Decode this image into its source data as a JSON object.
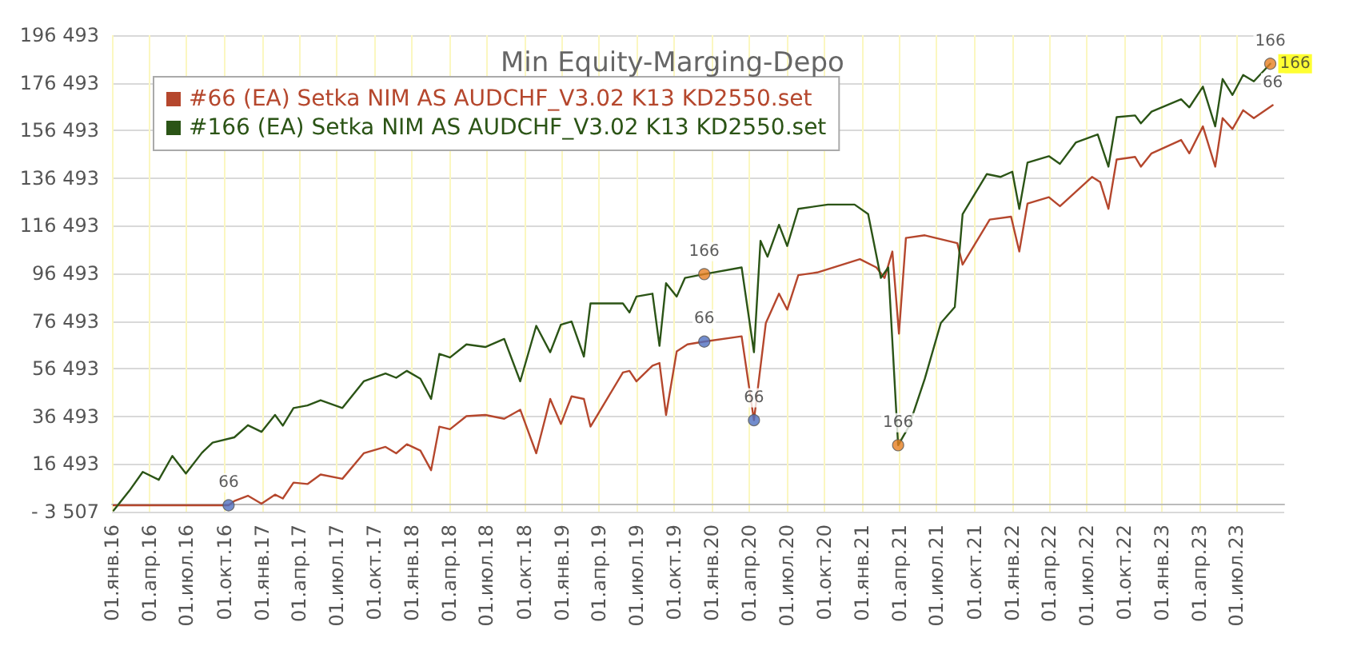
{
  "chart_data": {
    "type": "line",
    "title": "Min Equity-Marging-Depo",
    "legend": "top left",
    "grid": true,
    "line_style": "solid",
    "xlim": [
      "2016-01-01",
      "2023-10-25"
    ],
    "xticks": [
      {
        "value": "2016-01-01",
        "label": "01.янв.16"
      },
      {
        "value": "2016-04-01",
        "label": "01.апр.16"
      },
      {
        "value": "2016-07-01",
        "label": "01.июл.16"
      },
      {
        "value": "2016-10-01",
        "label": "01.окт.16"
      },
      {
        "value": "2017-01-01",
        "label": "01.янв.17"
      },
      {
        "value": "2017-04-01",
        "label": "01.апр.17"
      },
      {
        "value": "2017-07-01",
        "label": "01.июл.17"
      },
      {
        "value": "2017-10-01",
        "label": "01.окт.17"
      },
      {
        "value": "2018-01-01",
        "label": "01.янв.18"
      },
      {
        "value": "2018-04-01",
        "label": "01.апр.18"
      },
      {
        "value": "2018-07-01",
        "label": "01.июл.18"
      },
      {
        "value": "2018-10-01",
        "label": "01.окт.18"
      },
      {
        "value": "2019-01-01",
        "label": "01.янв.19"
      },
      {
        "value": "2019-04-01",
        "label": "01.апр.19"
      },
      {
        "value": "2019-07-01",
        "label": "01.июл.19"
      },
      {
        "value": "2019-10-01",
        "label": "01.окт.19"
      },
      {
        "value": "2020-01-01",
        "label": "01.янв.20"
      },
      {
        "value": "2020-04-01",
        "label": "01.апр.20"
      },
      {
        "value": "2020-07-01",
        "label": "01.июл.20"
      },
      {
        "value": "2020-10-01",
        "label": "01.окт.20"
      },
      {
        "value": "2021-01-01",
        "label": "01.янв.21"
      },
      {
        "value": "2021-04-01",
        "label": "01.апр.21"
      },
      {
        "value": "2021-07-01",
        "label": "01.июл.21"
      },
      {
        "value": "2021-10-01",
        "label": "01.окт.21"
      },
      {
        "value": "2022-01-01",
        "label": "01.янв.22"
      },
      {
        "value": "2022-04-01",
        "label": "01.апр.22"
      },
      {
        "value": "2022-07-01",
        "label": "01.июл.22"
      },
      {
        "value": "2022-10-01",
        "label": "01.окт.22"
      },
      {
        "value": "2023-01-01",
        "label": "01.янв.23"
      },
      {
        "value": "2023-04-01",
        "label": "01.апр.23"
      },
      {
        "value": "2023-07-01",
        "label": "01.июл.23"
      }
    ],
    "ylim": [
      -3507,
      196493
    ],
    "yticks": [
      {
        "value": -3507,
        "label": "- 3 507"
      },
      {
        "value": 16493,
        "label": "16 493"
      },
      {
        "value": 36493,
        "label": "36 493"
      },
      {
        "value": 56493,
        "label": "56 493"
      },
      {
        "value": 76493,
        "label": "76 493"
      },
      {
        "value": 96493,
        "label": "96 493"
      },
      {
        "value": 116493,
        "label": "116 493"
      },
      {
        "value": 136493,
        "label": "136 493"
      },
      {
        "value": 156493,
        "label": "156 493"
      },
      {
        "value": 176493,
        "label": "176 493"
      },
      {
        "value": 196493,
        "label": "196 493"
      }
    ],
    "series": [
      {
        "name": "#66 (EA) Setka NIM AS AUDCHF_V3.02 K13 KD2550.set",
        "color": "#b5472d",
        "x": [
          "2016-01-05",
          "2016-10-11",
          "2016-10-25",
          "2016-11-27",
          "2016-12-30",
          "2017-02-01",
          "2017-02-20",
          "2017-03-18",
          "2017-04-21",
          "2017-05-23",
          "2017-07-15",
          "2017-09-05",
          "2017-10-28",
          "2017-11-23",
          "2017-12-19",
          "2018-01-21",
          "2018-02-16",
          "2018-03-08",
          "2018-04-03",
          "2018-05-13",
          "2018-06-28",
          "2018-08-13",
          "2018-09-21",
          "2018-10-30",
          "2018-12-03",
          "2018-12-29",
          "2019-01-24",
          "2019-02-23",
          "2019-03-11",
          "2019-05-29",
          "2019-06-14",
          "2019-07-01",
          "2019-08-09",
          "2019-08-26",
          "2019-09-11",
          "2019-10-07",
          "2019-11-02",
          "2019-12-13",
          "2020-03-13",
          "2020-04-12",
          "2020-05-11",
          "2020-06-12",
          "2020-07-02",
          "2020-07-29",
          "2020-09-13",
          "2020-12-26",
          "2021-02-04",
          "2021-02-24",
          "2021-03-15",
          "2021-03-31",
          "2021-04-17",
          "2021-06-02",
          "2021-08-20",
          "2021-09-02",
          "2021-11-07",
          "2021-12-29",
          "2022-01-18",
          "2022-02-07",
          "2022-03-31",
          "2022-04-27",
          "2022-07-14",
          "2022-08-03",
          "2022-08-23",
          "2022-09-12",
          "2022-10-27",
          "2022-11-10",
          "2022-12-06",
          "2023-02-16",
          "2023-03-08",
          "2023-04-10",
          "2023-05-10",
          "2023-05-28",
          "2023-06-21",
          "2023-07-17",
          "2023-08-12",
          "2023-09-27"
        ],
        "values": [
          -830,
          -830,
          980,
          3180,
          -160,
          3640,
          2040,
          8700,
          8100,
          12100,
          10300,
          21000,
          23700,
          21000,
          24800,
          22100,
          13900,
          32200,
          31100,
          36600,
          37100,
          35500,
          39300,
          21000,
          43800,
          33300,
          44900,
          43800,
          32200,
          54900,
          55600,
          51200,
          57800,
          58900,
          37100,
          63800,
          66700,
          67900,
          70100,
          34900,
          75700,
          88000,
          81300,
          95800,
          96900,
          102500,
          99000,
          94600,
          105700,
          71200,
          111400,
          112500,
          109200,
          100200,
          119100,
          120300,
          105700,
          125800,
          128500,
          124700,
          137000,
          134800,
          123600,
          144300,
          145400,
          141300,
          146900,
          152500,
          146900,
          158200,
          141300,
          161700,
          157100,
          165000,
          161700,
          167100
        ]
      },
      {
        "name": "#166 (EA) Setka NIM AS AUDCHF_V3.02 K13 KD2550.set",
        "color": "#2b5416",
        "x": [
          "2016-01-05",
          "2016-02-12",
          "2016-03-16",
          "2016-04-24",
          "2016-05-27",
          "2016-06-29",
          "2016-08-07",
          "2016-09-02",
          "2016-10-25",
          "2016-11-27",
          "2016-12-30",
          "2017-02-01",
          "2017-02-20",
          "2017-03-18",
          "2017-04-21",
          "2017-05-23",
          "2017-07-15",
          "2017-09-05",
          "2017-10-28",
          "2017-11-23",
          "2017-12-19",
          "2018-01-21",
          "2018-02-16",
          "2018-03-08",
          "2018-04-03",
          "2018-05-13",
          "2018-06-28",
          "2018-08-13",
          "2018-09-21",
          "2018-10-30",
          "2018-12-03",
          "2018-12-29",
          "2019-01-24",
          "2019-02-23",
          "2019-03-11",
          "2019-05-29",
          "2019-06-14",
          "2019-07-01",
          "2019-08-09",
          "2019-08-26",
          "2019-09-11",
          "2019-10-07",
          "2019-10-27",
          "2019-12-13",
          "2020-03-13",
          "2020-04-12",
          "2020-04-28",
          "2020-05-15",
          "2020-06-12",
          "2020-07-02",
          "2020-07-29",
          "2020-10-09",
          "2020-12-13",
          "2021-01-15",
          "2021-02-15",
          "2021-03-05",
          "2021-03-29",
          "2021-04-24",
          "2021-06-02",
          "2021-07-11",
          "2021-08-14",
          "2021-09-02",
          "2021-10-31",
          "2021-12-03",
          "2022-01-01",
          "2022-01-18",
          "2022-02-07",
          "2022-03-31",
          "2022-04-27",
          "2022-06-05",
          "2022-07-28",
          "2022-08-23",
          "2022-09-12",
          "2022-10-27",
          "2022-11-10",
          "2022-12-06",
          "2023-02-16",
          "2023-03-08",
          "2023-04-10",
          "2023-05-10",
          "2023-05-28",
          "2023-06-21",
          "2023-07-17",
          "2023-08-12",
          "2023-09-21"
        ],
        "values": [
          -3000,
          5190,
          13200,
          9870,
          19900,
          12500,
          21200,
          25500,
          27700,
          32800,
          30000,
          37100,
          32600,
          40000,
          41100,
          43300,
          40000,
          51200,
          54500,
          52700,
          55600,
          52300,
          43800,
          62700,
          61200,
          66700,
          65600,
          69000,
          51200,
          74500,
          63400,
          75000,
          76300,
          61600,
          83900,
          83900,
          80100,
          86800,
          88000,
          66100,
          92400,
          86800,
          94600,
          96200,
          99000,
          63400,
          110200,
          103500,
          116900,
          108000,
          123600,
          125400,
          125400,
          121400,
          94600,
          99000,
          24400,
          32200,
          52300,
          75700,
          82400,
          121400,
          138200,
          137000,
          139200,
          123600,
          143000,
          145700,
          142500,
          151500,
          154800,
          141300,
          162100,
          162800,
          159500,
          164400,
          169600,
          166200,
          174900,
          158200,
          178100,
          171400,
          179800,
          177100,
          184500
        ]
      },
      {
        "type": "scatter",
        "marker": "circle",
        "color": "#e67e22",
        "x": [
          "2019-12-13",
          "2021-03-29",
          "2023-09-21"
        ],
        "values": [
          96200,
          24400,
          184500
        ]
      },
      {
        "type": "scatter",
        "marker": "circle",
        "color": "#4f6fc0",
        "x": [
          "2016-10-11",
          "2019-12-13",
          "2020-04-12"
        ],
        "values": [
          -830,
          67900,
          34900
        ]
      }
    ],
    "annotations": [
      {
        "text": "66",
        "x": "2016-10-11",
        "y": -830
      },
      {
        "text": "166",
        "x": "2019-12-13",
        "y": 96200
      },
      {
        "text": "66",
        "x": "2019-12-13",
        "y": 67900
      },
      {
        "text": "66",
        "x": "2020-04-12",
        "y": 34900
      },
      {
        "text": "166",
        "x": "2021-03-29",
        "y": 24400
      },
      {
        "text": "166",
        "x": "2023-09-21",
        "y": 184500
      },
      {
        "text": "166",
        "x": "2023-09-21",
        "y": 184500
      },
      {
        "text": "66",
        "x": "2023-09-27",
        "y": 167100
      }
    ]
  }
}
